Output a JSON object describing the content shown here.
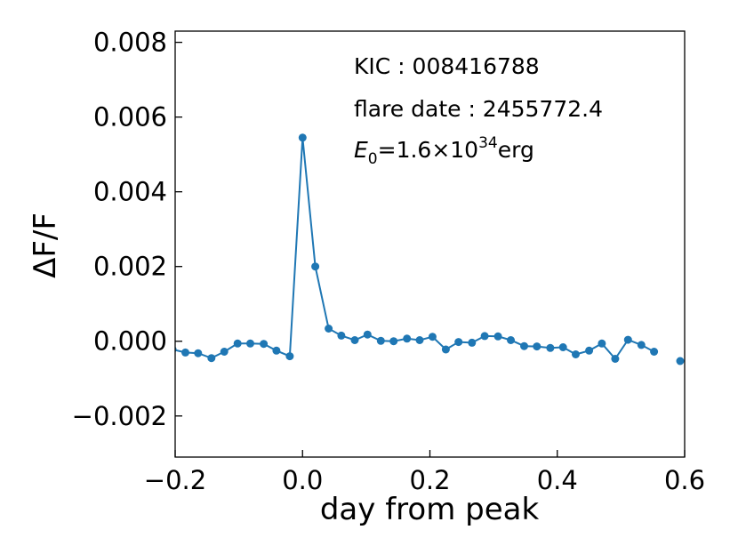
{
  "chart_data": {
    "type": "line",
    "title": "",
    "xlabel": "day from peak",
    "ylabel": "ΔF/F",
    "xlim": [
      -0.2,
      0.6
    ],
    "ylim": [
      -0.0031,
      0.0083
    ],
    "xticks": [
      -0.2,
      0.0,
      0.2,
      0.4,
      0.6
    ],
    "xtick_labels": [
      "−0.2",
      "0.0",
      "0.2",
      "0.4",
      "0.6"
    ],
    "yticks": [
      -0.002,
      0.0,
      0.002,
      0.004,
      0.006,
      0.008
    ],
    "ytick_labels": [
      "−0.002",
      "0.000",
      "0.002",
      "0.004",
      "0.006",
      "0.008"
    ],
    "grid": false,
    "color": "#1f77b4",
    "annotations": {
      "kic": "KIC : 008416788",
      "flare_date": "flare date : 2455772.4",
      "energy_symbol": "E",
      "energy_sub": "0",
      "energy_mid": "=1.6×10",
      "energy_exp": "34",
      "energy_unit": "erg"
    },
    "segments": [
      {
        "x": [
          -0.204,
          -0.184,
          -0.164,
          -0.143,
          -0.123,
          -0.102,
          -0.082,
          -0.061,
          -0.041,
          -0.02,
          0.0,
          0.02,
          0.041,
          0.061,
          0.082,
          0.102,
          0.123,
          0.143,
          0.164,
          0.184,
          0.204,
          0.225,
          0.245,
          0.266,
          0.286,
          0.307,
          0.327,
          0.348,
          0.368,
          0.389,
          0.409,
          0.429,
          0.45,
          0.47,
          0.491,
          0.511,
          0.532,
          0.552
        ],
        "y": [
          -0.00022,
          -0.0003,
          -0.00032,
          -0.00045,
          -0.00028,
          -6e-05,
          -6e-05,
          -7e-05,
          -0.00025,
          -0.0004,
          0.00545,
          0.002,
          0.00034,
          0.00015,
          3e-05,
          0.00018,
          1e-05,
          0.0,
          7e-05,
          3e-05,
          0.00012,
          -0.00022,
          -2e-05,
          -4e-05,
          0.00014,
          0.00013,
          3e-05,
          -0.00013,
          -0.00014,
          -0.00018,
          -0.00016,
          -0.00035,
          -0.00025,
          -6e-05,
          -0.00047,
          4e-05,
          -0.0001,
          -0.00028
        ]
      },
      {
        "x": [
          0.593
        ],
        "y": [
          -0.00053
        ]
      }
    ]
  }
}
